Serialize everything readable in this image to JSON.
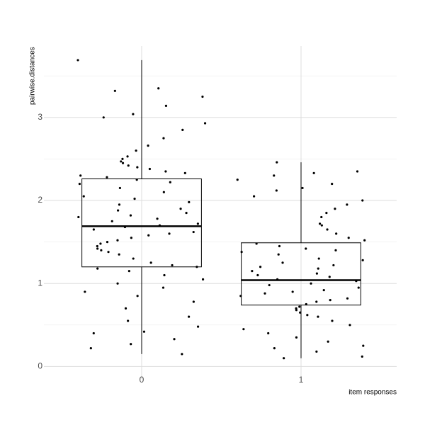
{
  "chart_data": {
    "type": "boxplot",
    "xlabel": "item responses",
    "ylabel": "pairwise.distances",
    "categories": [
      "0",
      "1"
    ],
    "boxes": [
      {
        "min": 0.15,
        "q1": 1.2,
        "median": 1.69,
        "q3": 2.26,
        "max": 3.69
      },
      {
        "min": 0.1,
        "q1": 0.74,
        "median": 1.04,
        "q3": 1.49,
        "max": 2.46
      }
    ],
    "points": [
      [
        3.69,
        3.35,
        3.32,
        3.25,
        3.14,
        3.04,
        3.0,
        2.93,
        2.85,
        2.75,
        2.66,
        2.6,
        2.53,
        2.5,
        2.47,
        2.45,
        2.42,
        2.4,
        2.38,
        2.35,
        2.33,
        2.3,
        2.28,
        2.25,
        2.22,
        2.2,
        2.15,
        2.1,
        2.05,
        2.02,
        1.98,
        1.95,
        1.9,
        1.88,
        1.85,
        1.82,
        1.8,
        1.78,
        1.75,
        1.72,
        1.7,
        1.68,
        1.65,
        1.62,
        1.6,
        1.58,
        1.55,
        1.52,
        1.5,
        1.48,
        1.45,
        1.42,
        1.4,
        1.38,
        1.35,
        1.3,
        1.25,
        1.22,
        1.2,
        1.18,
        1.15,
        1.1,
        1.05,
        1.0,
        0.95,
        0.9,
        0.85,
        0.78,
        0.7,
        0.6,
        0.55,
        0.48,
        0.42,
        0.4,
        0.33,
        0.27,
        0.22,
        0.15
      ],
      [
        2.46,
        2.35,
        2.33,
        2.3,
        2.25,
        2.2,
        2.15,
        2.12,
        2.05,
        2.0,
        1.95,
        1.9,
        1.85,
        1.8,
        1.72,
        1.7,
        1.65,
        1.6,
        1.55,
        1.52,
        1.48,
        1.45,
        1.42,
        1.4,
        1.38,
        1.35,
        1.3,
        1.28,
        1.25,
        1.22,
        1.2,
        1.18,
        1.15,
        1.12,
        1.1,
        1.08,
        1.05,
        1.03,
        1.0,
        0.98,
        0.95,
        0.92,
        0.9,
        0.88,
        0.85,
        0.82,
        0.8,
        0.78,
        0.75,
        0.72,
        0.7,
        0.68,
        0.65,
        0.62,
        0.6,
        0.55,
        0.5,
        0.45,
        0.4,
        0.35,
        0.3,
        0.25,
        0.22,
        0.18,
        0.12,
        0.1
      ]
    ],
    "ylim": [
      -0.15,
      3.86
    ],
    "yticks": [
      0,
      1,
      2,
      3
    ],
    "minor_yticks": [
      0.5,
      1.5,
      2.5,
      3.5
    ],
    "grid": true,
    "color": "#000000"
  }
}
